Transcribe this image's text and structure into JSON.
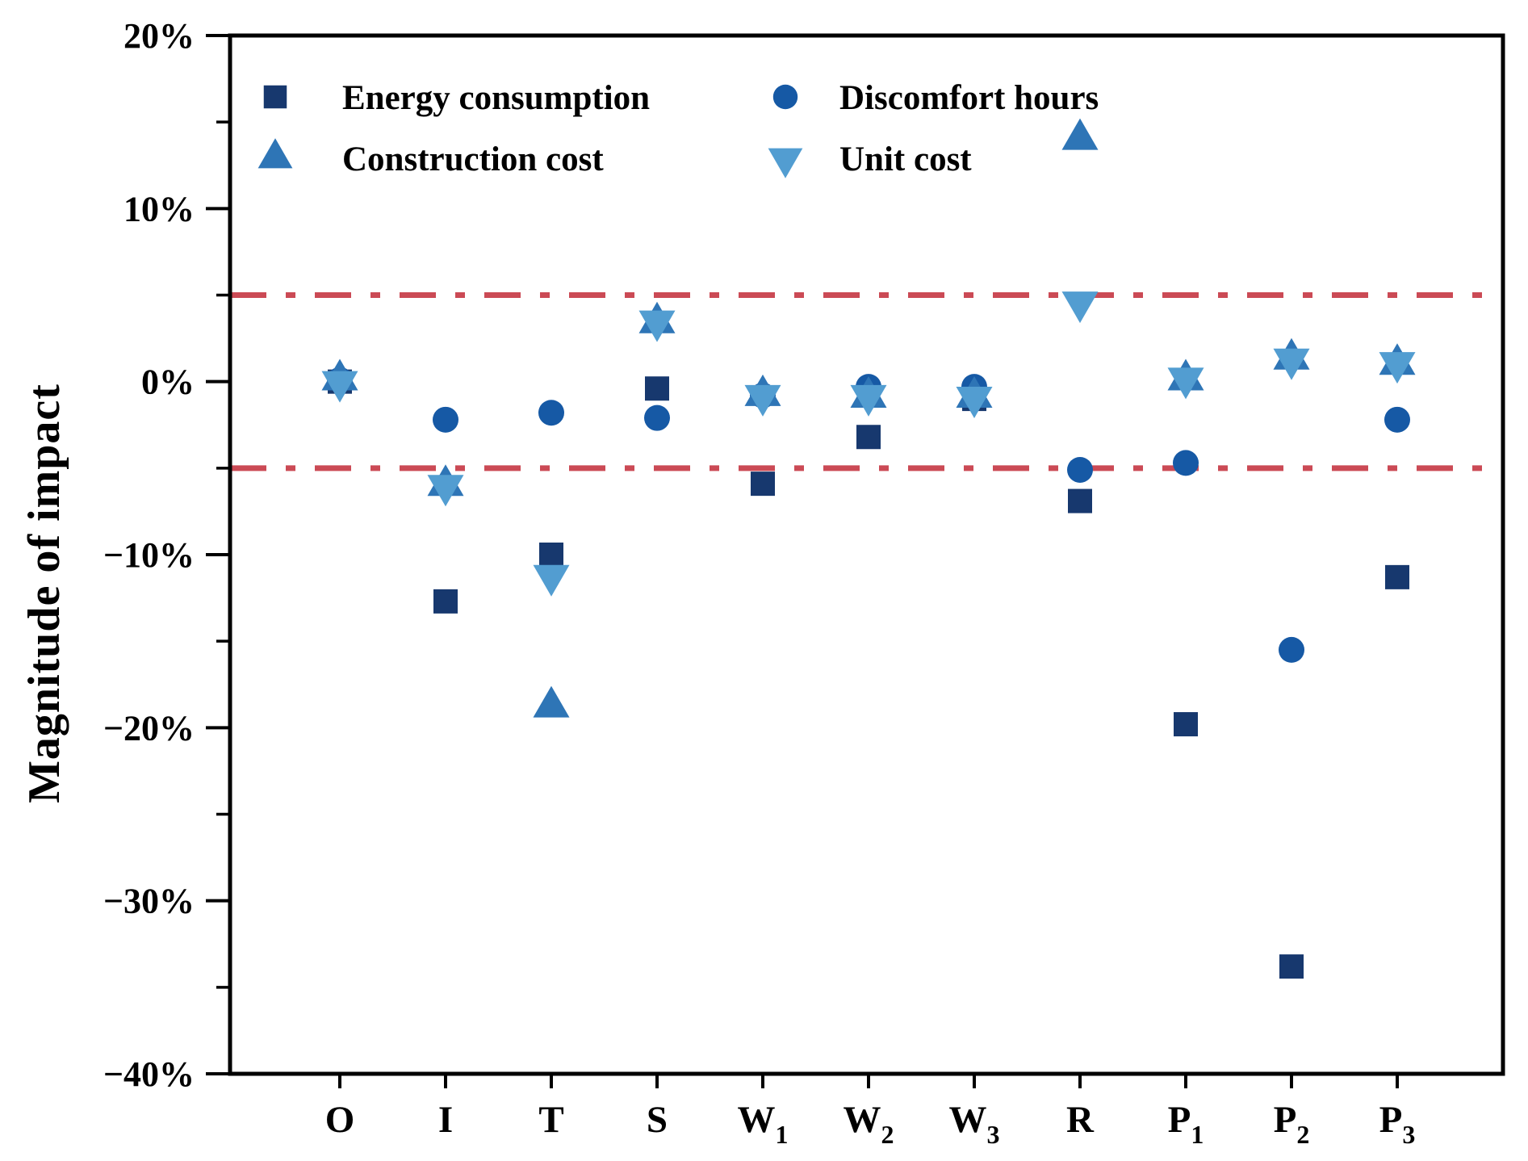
{
  "chart_data": {
    "type": "scatter",
    "title": "",
    "xlabel": "",
    "ylabel": "Magnitude of impact",
    "ylim": [
      -40,
      20
    ],
    "grid": false,
    "legend_position": "top-left-inside",
    "categories": [
      {
        "base": "O",
        "sub": ""
      },
      {
        "base": "I",
        "sub": ""
      },
      {
        "base": "T",
        "sub": ""
      },
      {
        "base": "S",
        "sub": ""
      },
      {
        "base": "W",
        "sub": "1"
      },
      {
        "base": "W",
        "sub": "2"
      },
      {
        "base": "W",
        "sub": "3"
      },
      {
        "base": "R",
        "sub": ""
      },
      {
        "base": "P",
        "sub": "1"
      },
      {
        "base": "P",
        "sub": "2"
      },
      {
        "base": "P",
        "sub": "3"
      }
    ],
    "series": [
      {
        "name": "Energy consumption",
        "marker": "square",
        "color": "#17386E",
        "values": [
          0.0,
          -12.7,
          -10.0,
          -0.4,
          -5.9,
          -3.2,
          -1.0,
          -6.9,
          -19.8,
          -33.8,
          -11.3
        ]
      },
      {
        "name": "Discomfort hours",
        "marker": "circle",
        "color": "#1659A5",
        "values": [
          0.1,
          -2.2,
          -1.8,
          -2.1,
          -0.8,
          -0.3,
          -0.3,
          -5.1,
          -4.7,
          -15.5,
          -2.2
        ]
      },
      {
        "name": "Construction cost",
        "marker": "triangle-up",
        "color": "#2E75B6",
        "values": [
          0.1,
          -6.0,
          -18.8,
          3.4,
          -0.8,
          -0.9,
          -0.9,
          14.0,
          0.1,
          1.3,
          1.0
        ]
      },
      {
        "name": "Unit cost",
        "marker": "triangle-down",
        "color": "#529DD1",
        "values": [
          0.0,
          -6.0,
          -11.2,
          3.5,
          -0.8,
          -0.8,
          -0.9,
          4.6,
          0.2,
          1.3,
          1.1
        ]
      }
    ],
    "yticks_major": [
      {
        "v": 20,
        "label": "20%"
      },
      {
        "v": 10,
        "label": "10%"
      },
      {
        "v": 0,
        "label": "0%"
      },
      {
        "v": -10,
        "label": "−10%"
      },
      {
        "v": -20,
        "label": "−20%"
      },
      {
        "v": -30,
        "label": "−30%"
      },
      {
        "v": -40,
        "label": "−40%"
      }
    ],
    "yticks_minor": [
      15,
      5,
      -5,
      -15,
      -25,
      -35
    ],
    "reference_lines": [
      {
        "y": 5,
        "color": "#CB4A55",
        "style": "dash-dot"
      },
      {
        "y": -5,
        "color": "#CB4A55",
        "style": "dash-dot"
      }
    ],
    "legend_rows": [
      [
        "Energy consumption",
        "Discomfort hours"
      ],
      [
        "Construction cost",
        "Unit cost"
      ]
    ],
    "axis_color": "#000000"
  }
}
